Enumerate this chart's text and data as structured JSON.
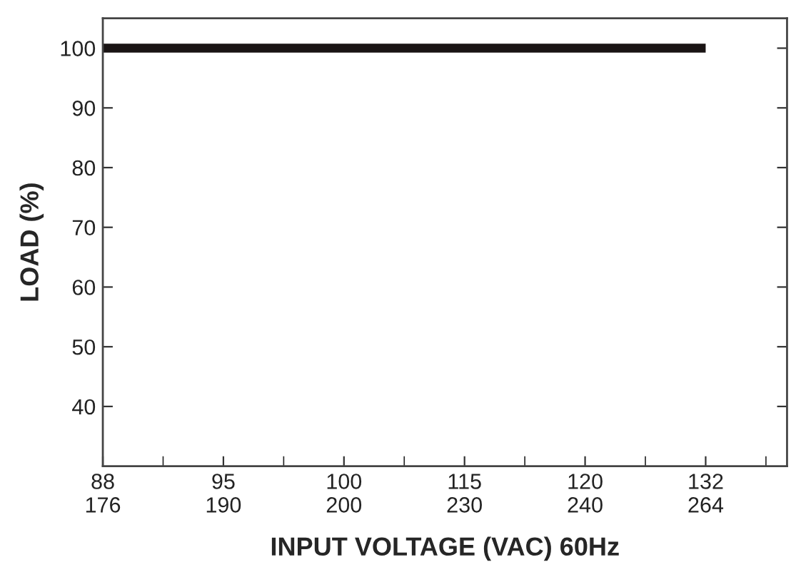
{
  "chart_data": {
    "type": "line",
    "xlabel": "INPUT VOLTAGE (VAC) 60Hz",
    "ylabel": "LOAD (%)",
    "categories": [
      "88\n176",
      "95\n190",
      "100\n200",
      "115\n230",
      "120\n240",
      "132\n264"
    ],
    "series": [
      {
        "color": "#1a1414",
        "values": [
          100,
          100,
          100,
          100,
          100,
          100
        ]
      }
    ],
    "ylim": [
      30,
      105
    ],
    "yticks": [
      40,
      50,
      60,
      70,
      80,
      90,
      100
    ],
    "grid": false,
    "legend": false,
    "marker": "none",
    "line_style": "solid"
  }
}
